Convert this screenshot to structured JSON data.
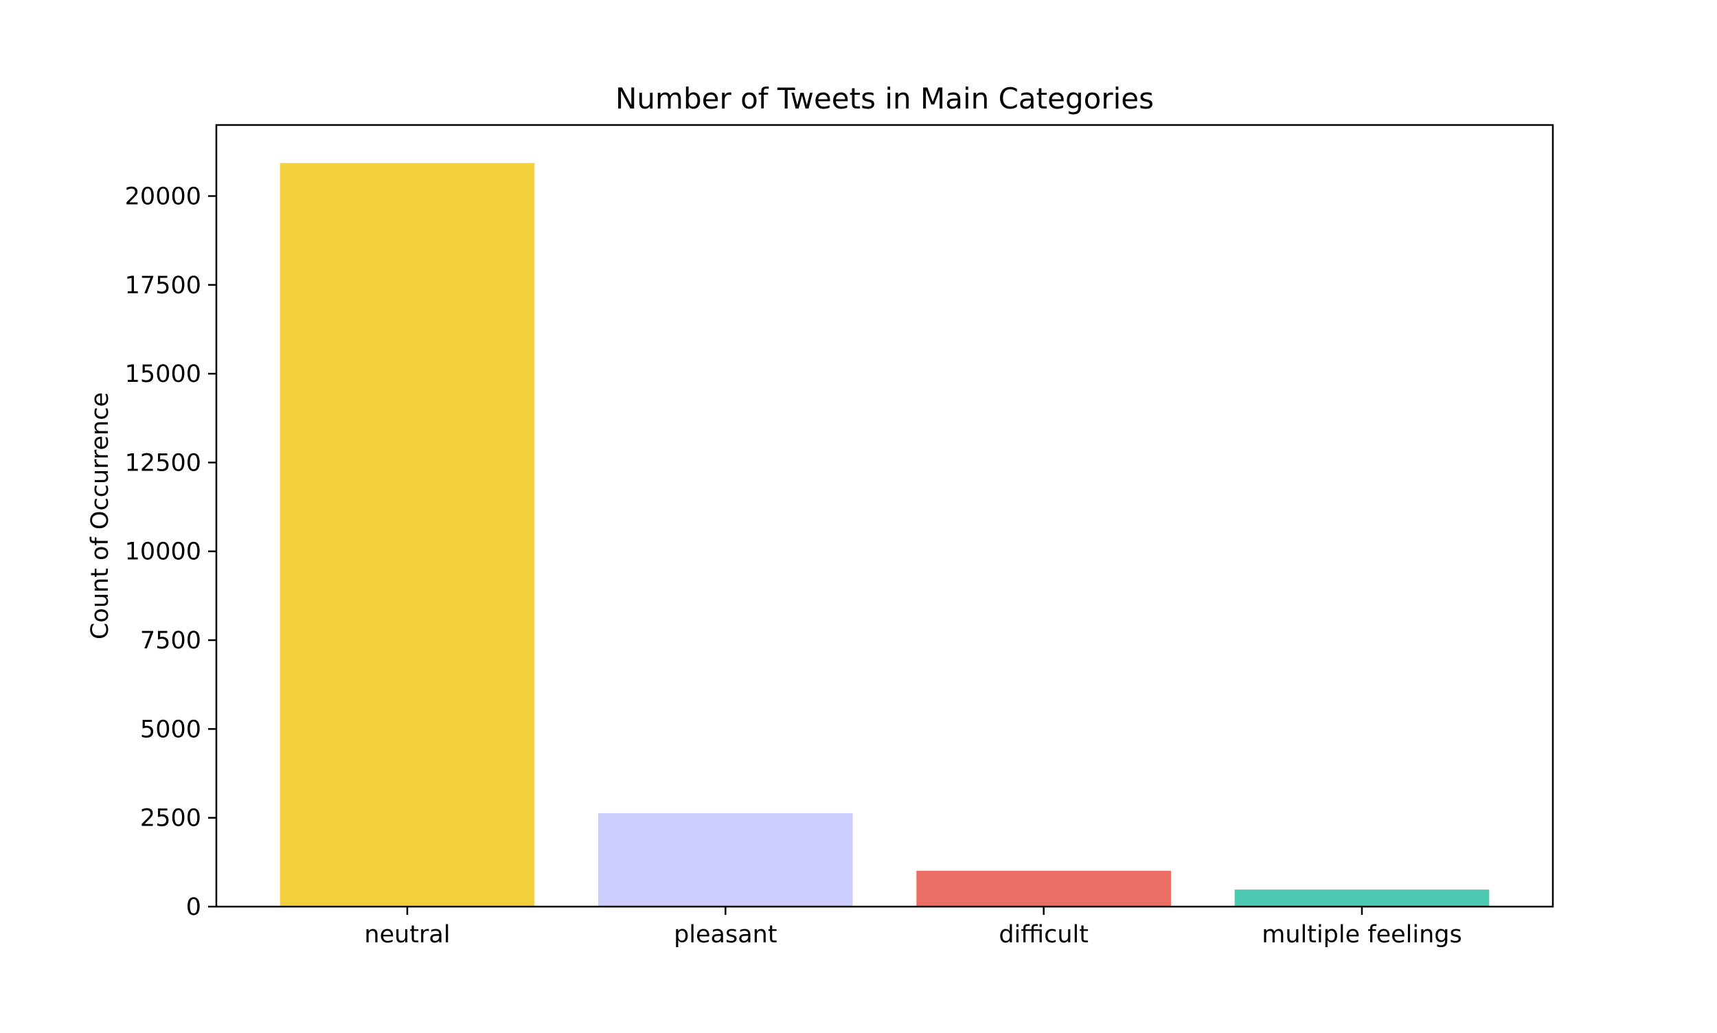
{
  "chart_data": {
    "type": "bar",
    "title": "Number of Tweets in Main Categories",
    "xlabel": "",
    "ylabel": "Count of Occurrence",
    "categories": [
      "neutral",
      "pleasant",
      "difficult",
      "multiple feelings"
    ],
    "values": [
      20930,
      2630,
      1010,
      480
    ],
    "colors": [
      "#f3d13e",
      "#cccdfd",
      "#ec6f65",
      "#4ecab2"
    ],
    "ylim": [
      0,
      22000
    ],
    "yticks": [
      0,
      2500,
      5000,
      7500,
      10000,
      12500,
      15000,
      17500,
      20000
    ],
    "grid": false,
    "legend": "none"
  }
}
